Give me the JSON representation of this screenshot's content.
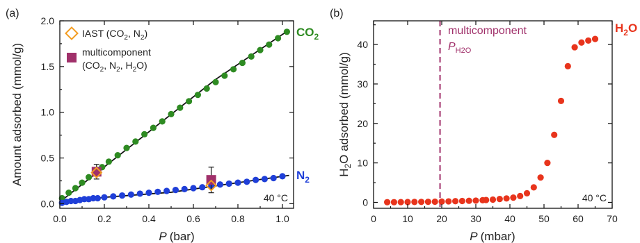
{
  "chart_data": [
    {
      "type": "scatter",
      "panel": "(a)",
      "xlabel_italic": "P",
      "xlabel_unit": "(bar)",
      "ylabel": "Amount adsorbed (mmol/g)",
      "xlim": [
        0,
        1.05
      ],
      "ylim": [
        -0.05,
        2.0
      ],
      "xticks": [
        "0.0",
        "0.2",
        "0.4",
        "0.6",
        "0.8",
        "1.0"
      ],
      "yticks": [
        "0.0",
        "0.5",
        "1.0",
        "1.5",
        "2.0"
      ],
      "temperature": "40 °C",
      "legend": [
        {
          "marker": "diamond-open",
          "color": "#f39c1f",
          "text": "IAST (CO",
          "sub": "2",
          "text2": ", N",
          "sub2": "2",
          "text3": ")"
        },
        {
          "marker": "square",
          "color": "#a0306a",
          "line1": "multicomponent",
          "line2": "(CO",
          "sub": "2",
          "line2b": ", N",
          "sub2": "2",
          "line2c": ", H",
          "sub3": "2",
          "line2d": "O)"
        }
      ],
      "series": [
        {
          "name": "CO2",
          "label_main": "CO",
          "label_sub": "2",
          "color": "#2e8b22",
          "x": [
            0.01,
            0.04,
            0.07,
            0.1,
            0.13,
            0.16,
            0.19,
            0.22,
            0.26,
            0.3,
            0.34,
            0.38,
            0.42,
            0.46,
            0.5,
            0.54,
            0.58,
            0.62,
            0.66,
            0.7,
            0.74,
            0.78,
            0.82,
            0.86,
            0.9,
            0.94,
            0.98,
            1.02
          ],
          "y": [
            0.06,
            0.12,
            0.17,
            0.23,
            0.29,
            0.35,
            0.4,
            0.46,
            0.53,
            0.61,
            0.68,
            0.76,
            0.83,
            0.9,
            0.98,
            1.05,
            1.12,
            1.19,
            1.26,
            1.33,
            1.4,
            1.47,
            1.54,
            1.61,
            1.68,
            1.74,
            1.81,
            1.88
          ]
        },
        {
          "name": "N2",
          "label_main": "N",
          "label_sub": "2",
          "color": "#1f3fd8",
          "x": [
            0.01,
            0.03,
            0.05,
            0.07,
            0.09,
            0.11,
            0.13,
            0.15,
            0.17,
            0.2,
            0.24,
            0.28,
            0.32,
            0.36,
            0.4,
            0.44,
            0.48,
            0.52,
            0.56,
            0.6,
            0.64,
            0.68,
            0.72,
            0.76,
            0.8,
            0.84,
            0.88,
            0.92,
            0.96,
            1.0
          ],
          "y": [
            0.01,
            0.02,
            0.03,
            0.03,
            0.04,
            0.05,
            0.05,
            0.06,
            0.06,
            0.07,
            0.08,
            0.09,
            0.1,
            0.11,
            0.12,
            0.13,
            0.14,
            0.15,
            0.16,
            0.17,
            0.18,
            0.19,
            0.21,
            0.22,
            0.23,
            0.24,
            0.26,
            0.27,
            0.28,
            0.3
          ]
        }
      ],
      "fit_lines": [
        {
          "series": "CO2",
          "x": [
            0.0,
            0.35,
            0.7,
            1.03
          ],
          "y": [
            0.02,
            0.69,
            1.36,
            1.9
          ]
        },
        {
          "series": "N2",
          "x": [
            0.0,
            0.2,
            0.5,
            0.8,
            1.03
          ],
          "y": [
            0.0,
            0.07,
            0.125,
            0.23,
            0.31
          ]
        }
      ],
      "multicomponent_points": [
        {
          "x": 0.165,
          "y": 0.35,
          "err": 0.08
        },
        {
          "x": 0.68,
          "y": 0.26,
          "err": 0.14
        }
      ],
      "iast_points": [
        {
          "x": 0.165,
          "y": 0.34
        },
        {
          "x": 0.68,
          "y": 0.2
        }
      ]
    },
    {
      "type": "scatter",
      "panel": "(b)",
      "xlabel_italic": "P",
      "xlabel_unit": "(mbar)",
      "ylabel_pre": "H",
      "ylabel_sub": "2",
      "ylabel_post": "O adsorbed (mmol/g)",
      "xlim": [
        0,
        70
      ],
      "ylim": [
        -1.5,
        46
      ],
      "xticks": [
        "0",
        "10",
        "20",
        "30",
        "40",
        "50",
        "60",
        "70"
      ],
      "yticks": [
        "0",
        "10",
        "20",
        "30",
        "40"
      ],
      "temperature": "40 °C",
      "vline": {
        "x": 19.5,
        "label_line1": "multicomponent",
        "label_italic": "P",
        "label_sub": "H2O",
        "color": "#a0306a"
      },
      "series": [
        {
          "name": "H2O",
          "label_main": "H",
          "label_sub": "2",
          "label_post": "O",
          "color": "#e8341c",
          "x": [
            4,
            6,
            8,
            10,
            12,
            14,
            16,
            18,
            20,
            22,
            24,
            26,
            28,
            30,
            32,
            33,
            35,
            37,
            39,
            41,
            43,
            45,
            47,
            49,
            51,
            53,
            55,
            57,
            59,
            61,
            63,
            65
          ],
          "y": [
            0.05,
            0.05,
            0.07,
            0.08,
            0.1,
            0.12,
            0.14,
            0.17,
            0.2,
            0.25,
            0.3,
            0.35,
            0.4,
            0.45,
            0.55,
            0.6,
            0.7,
            0.85,
            1.0,
            1.2,
            1.6,
            2.3,
            3.8,
            6.3,
            10.0,
            17.1,
            25.7,
            34.5,
            39.3,
            40.5,
            41.0,
            41.4
          ]
        }
      ]
    }
  ]
}
